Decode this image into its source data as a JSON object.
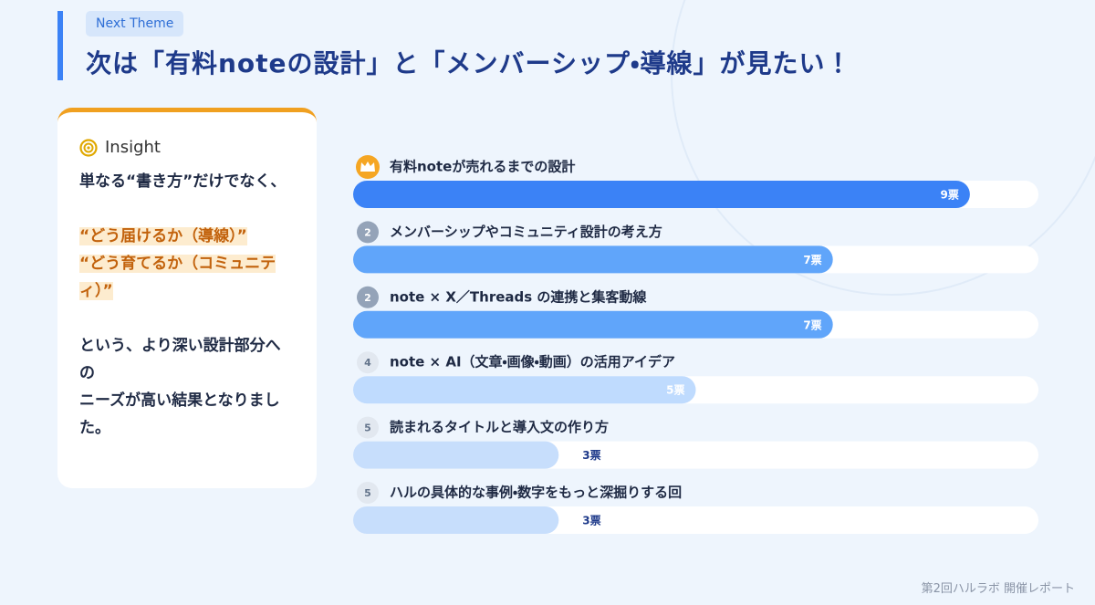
{
  "header": {
    "tag": "Next Theme",
    "title": "次は「有料noteの設計」と「メンバーシップ・導線」が見たい！"
  },
  "insight": {
    "title": "Insight",
    "paragraphs": [
      "単なる“書き方”だけでなく、",
      "“どう届けるか（導線）”",
      "“どう育てるか（コミュニティ）”",
      "という、より深い設計部分への",
      "ニーズが高い結果となりました。"
    ]
  },
  "chart_data": {
    "type": "bar",
    "orientation": "horizontal",
    "categories": [
      "有料noteが売れるまでの設計",
      "メンバーシップやコミュニティ設計の考え方",
      "note × X／Threads の連携と集客動線",
      "note × AI（文章・画像・動画）の活用アイデア",
      "読まれるタイトルと導入文の作り方",
      "ハルの具体的な事例・数字をもっと深掘りする回"
    ],
    "ranks": [
      null,
      2,
      2,
      4,
      5,
      5
    ],
    "values": [
      9,
      7,
      7,
      5,
      3,
      3
    ],
    "value_labels": [
      "9票",
      "7票",
      "7票",
      "5票",
      "3票",
      "3票"
    ],
    "colors": [
      "#3b82f6",
      "#60a5fa",
      "#60a5fa",
      "#bfdbfe",
      "#c7defc",
      "#c7defc"
    ],
    "xlim": [
      0,
      10
    ]
  },
  "footer": "第2回ハルラボ 開催レポート"
}
